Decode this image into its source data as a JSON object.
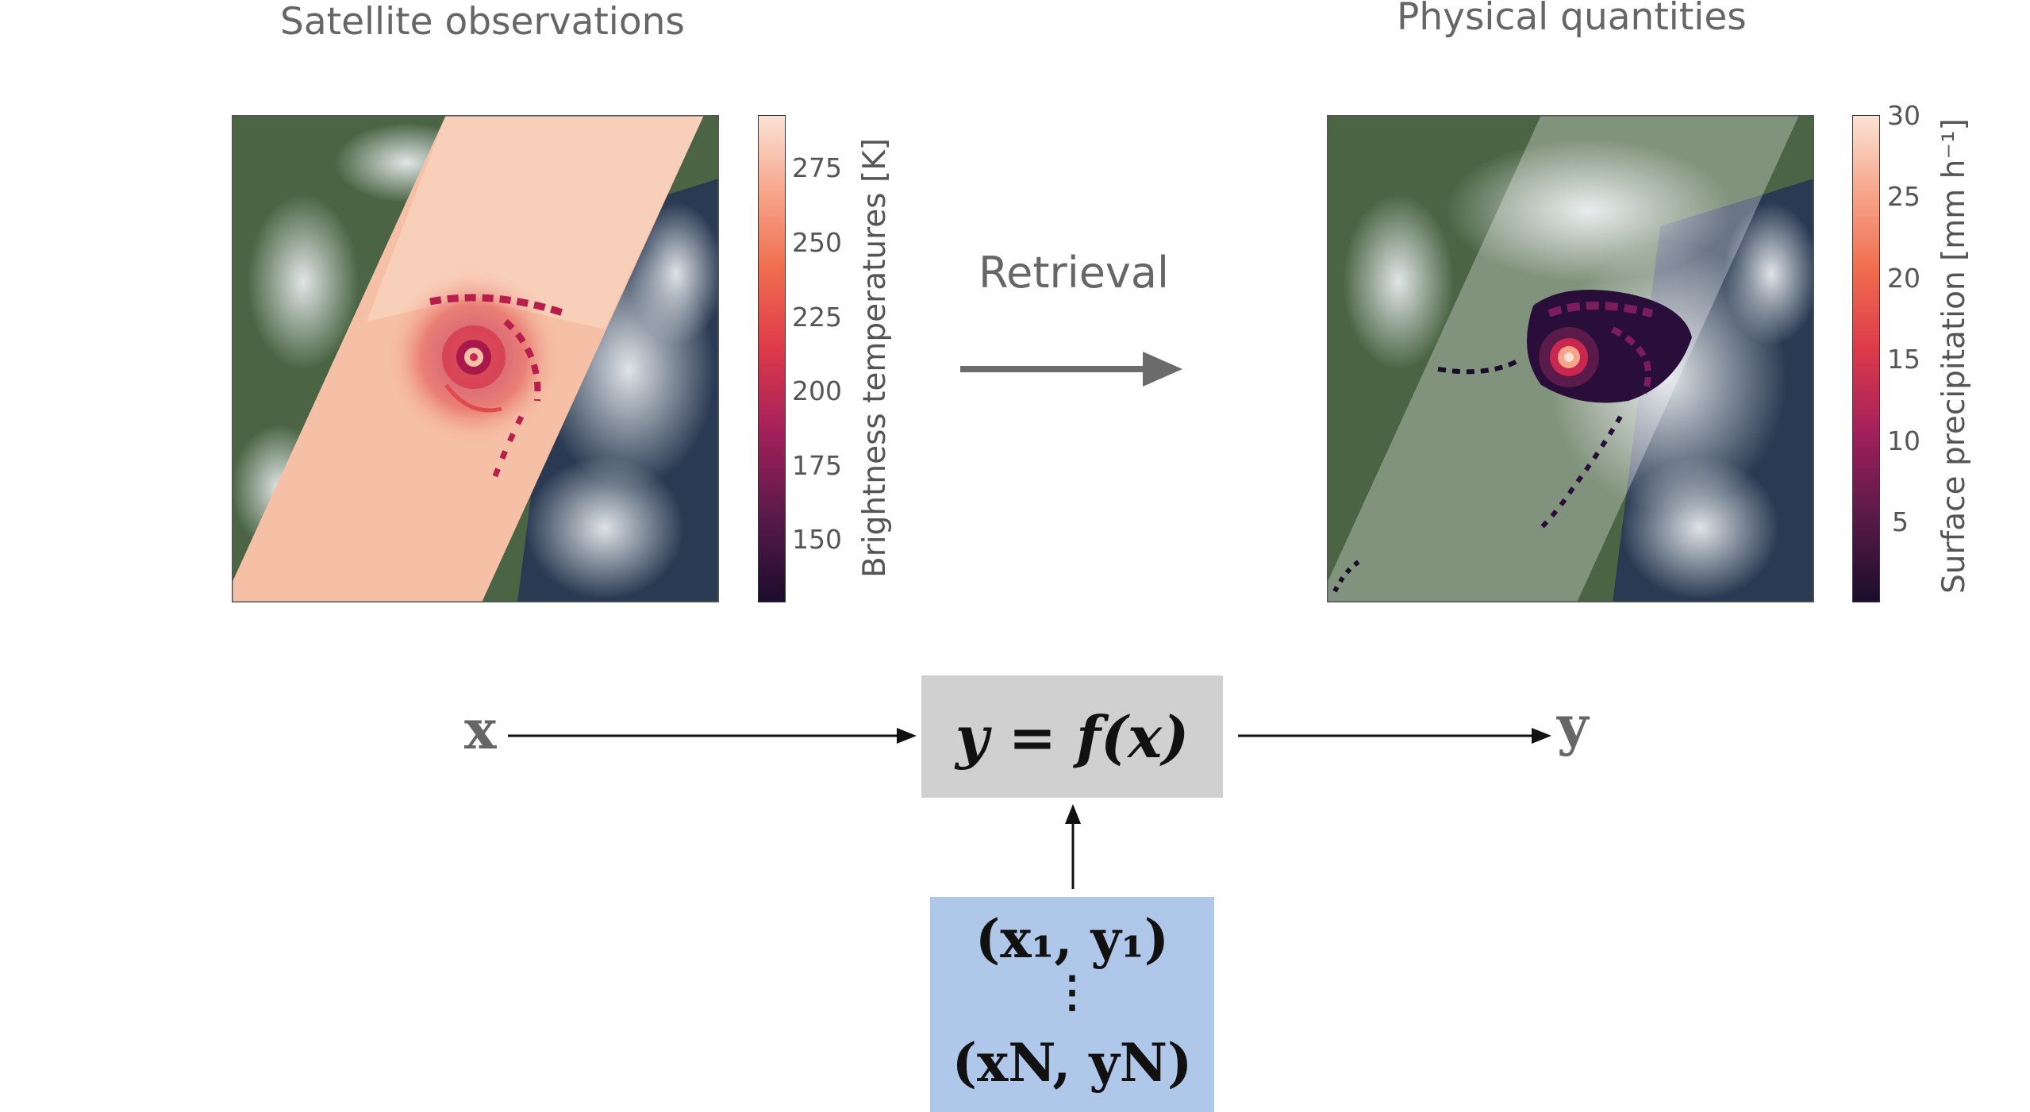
{
  "titles": {
    "left": "Satellite observations",
    "right": "Physical quantities",
    "retrieval": "Retrieval"
  },
  "colorbar_left": {
    "label": "Brightness temperatures [K]",
    "ticks": [
      "275",
      "250",
      "225",
      "200",
      "175",
      "150"
    ],
    "colormap": [
      "#1a0d2b",
      "#5a1a4a",
      "#a3205a",
      "#dd3a4a",
      "#f06b4d",
      "#f7a58a",
      "#fbe3d6"
    ]
  },
  "colorbar_right": {
    "label": "Surface precipitation [mm h⁻¹]",
    "ticks": [
      "30",
      "25",
      "20",
      "15",
      "10",
      "5"
    ],
    "colormap": [
      "#1a0d2b",
      "#5a1a4a",
      "#a3205a",
      "#dd3a4a",
      "#f06b4d",
      "#f7a58a",
      "#fbe3d6"
    ]
  },
  "diagram": {
    "input_symbol": "x",
    "output_symbol": "y",
    "function_box": "y = f(x)",
    "training_first": "(x₁, y₁)",
    "training_dots": "⋮",
    "training_last": "(xN, yN)"
  },
  "colors": {
    "function_box": "#d0d0d0",
    "training_box": "#afc7e9",
    "arrow_gray": "#6b6b6b"
  }
}
